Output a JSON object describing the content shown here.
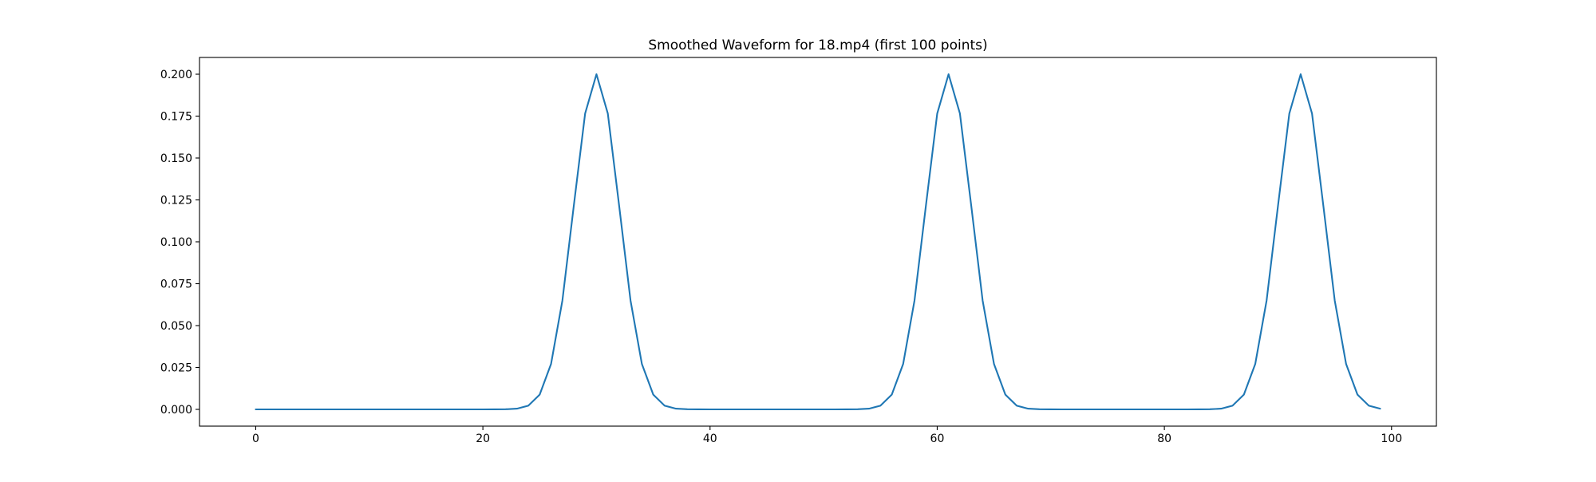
{
  "figure": {
    "background": "#ffffff"
  },
  "chart_data": {
    "type": "line",
    "title": "Smoothed Waveform for 18.mp4 (first 100 points)",
    "xlabel": "",
    "ylabel": "",
    "grid": false,
    "legend": false,
    "line_color": "#1f77b4",
    "axes_color": "#000000",
    "xlim": [
      -4.95,
      103.95
    ],
    "ylim": [
      -0.01,
      0.21
    ],
    "x_ticks": [
      {
        "value": 0,
        "label": "0"
      },
      {
        "value": 20,
        "label": "20"
      },
      {
        "value": 40,
        "label": "40"
      },
      {
        "value": 60,
        "label": "60"
      },
      {
        "value": 80,
        "label": "80"
      },
      {
        "value": 100,
        "label": "100"
      }
    ],
    "y_ticks": [
      {
        "value": 0.0,
        "label": "0.000"
      },
      {
        "value": 0.025,
        "label": "0.025"
      },
      {
        "value": 0.05,
        "label": "0.050"
      },
      {
        "value": 0.075,
        "label": "0.075"
      },
      {
        "value": 0.1,
        "label": "0.100"
      },
      {
        "value": 0.125,
        "label": "0.125"
      },
      {
        "value": 0.15,
        "label": "0.150"
      },
      {
        "value": 0.175,
        "label": "0.175"
      },
      {
        "value": 0.2,
        "label": "0.200"
      }
    ],
    "num_points": 100,
    "x_start": 0,
    "x_step": 1,
    "peaks_x": [
      30,
      61,
      92
    ],
    "peak_value": 0.2,
    "values": [
      0,
      0,
      0,
      0,
      0,
      0,
      0,
      0,
      0,
      0,
      0,
      0,
      0,
      0,
      0,
      0,
      0,
      0,
      0,
      0,
      0,
      1e-05,
      7e-05,
      0.00044,
      0.00222,
      0.00879,
      0.02707,
      0.06493,
      0.12131,
      0.1765,
      0.2,
      0.1765,
      0.12131,
      0.06493,
      0.02707,
      0.00879,
      0.00222,
      0.00044,
      7e-05,
      1e-05,
      0,
      0,
      0,
      0,
      0,
      0,
      0,
      0,
      0,
      0,
      0,
      0,
      1e-05,
      7e-05,
      0.00044,
      0.00222,
      0.00879,
      0.02707,
      0.06493,
      0.12131,
      0.1765,
      0.2,
      0.1765,
      0.12131,
      0.06493,
      0.02707,
      0.00879,
      0.00222,
      0.00044,
      7e-05,
      1e-05,
      0,
      0,
      0,
      0,
      0,
      0,
      0,
      0,
      0,
      0,
      0,
      0,
      1e-05,
      7e-05,
      0.00044,
      0.00222,
      0.00879,
      0.02707,
      0.06493,
      0.12131,
      0.1765,
      0.2,
      0.1765,
      0.12131,
      0.06493,
      0.02707,
      0.00879,
      0.00222,
      0.00044
    ]
  }
}
